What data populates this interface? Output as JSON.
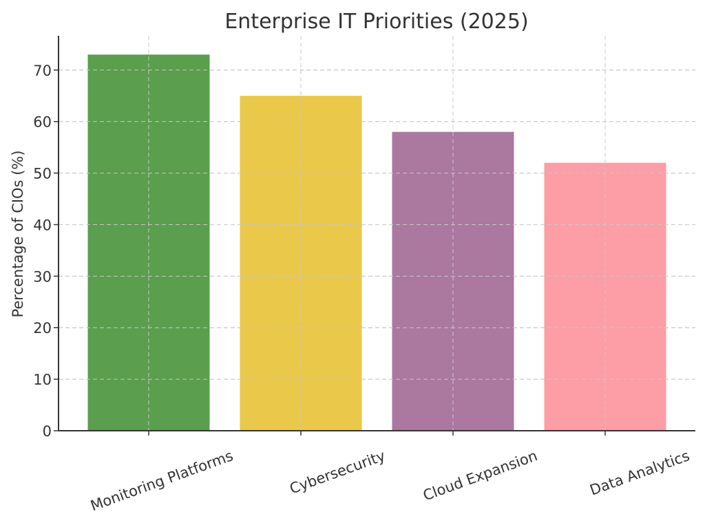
{
  "chart_data": {
    "type": "bar",
    "title": "Enterprise IT Priorities (2025)",
    "xlabel": "",
    "ylabel": "Percentage of CIOs (%)",
    "categories": [
      "Monitoring Platforms",
      "Cybersecurity",
      "Cloud Expansion",
      "Data Analytics"
    ],
    "values": [
      73,
      65,
      58,
      52
    ],
    "colors": [
      "#5a9e4e",
      "#eac84a",
      "#ab789f",
      "#fd9da6"
    ],
    "ylim": [
      0,
      76.65
    ],
    "yticks": [
      0,
      10,
      20,
      30,
      40,
      50,
      60,
      70
    ],
    "grid": true,
    "legend": "none"
  }
}
